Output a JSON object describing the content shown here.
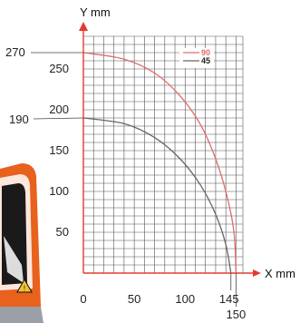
{
  "chart_data": {
    "type": "line",
    "title": "",
    "xlabel": "X  mm",
    "ylabel": "Y  mm",
    "xlim": [
      0,
      155
    ],
    "ylim": [
      0,
      290
    ],
    "x_ticks": [
      "0",
      "50",
      "100"
    ],
    "y_ticks": [
      "50",
      "100",
      "150",
      "200",
      "250"
    ],
    "grid": true,
    "legend_position": "top-right",
    "callouts": {
      "y_270": "270",
      "y_190": "190",
      "x_145": "145",
      "x_150": "150"
    },
    "series": [
      {
        "name": "90",
        "color": "#e06a6a",
        "points": [
          [
            0,
            270
          ],
          [
            40,
            262
          ],
          [
            70,
            245
          ],
          [
            95,
            217
          ],
          [
            115,
            182
          ],
          [
            130,
            140
          ],
          [
            141,
            95
          ],
          [
            148,
            50
          ],
          [
            150,
            0
          ]
        ]
      },
      {
        "name": "45",
        "color": "#666666",
        "points": [
          [
            0,
            190
          ],
          [
            40,
            183
          ],
          [
            70,
            166
          ],
          [
            95,
            140
          ],
          [
            115,
            108
          ],
          [
            130,
            72
          ],
          [
            140,
            35
          ],
          [
            145,
            0
          ]
        ]
      }
    ]
  },
  "colors": {
    "axis_arrow": "#e53a2e",
    "grid": "#555555",
    "photo_orange": "#e8611d"
  },
  "decor": {
    "photo_icon": "machine-photo",
    "warning_icon": "warning-triangle-icon"
  }
}
